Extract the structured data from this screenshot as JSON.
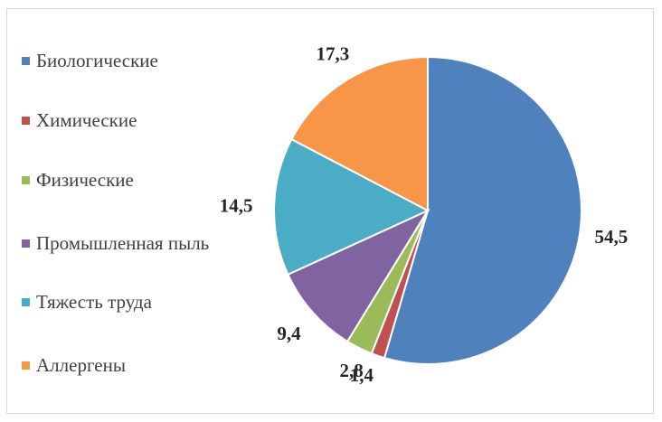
{
  "chart_data": {
    "type": "pie",
    "categories": [
      "Биологические",
      "Химические",
      "Физические",
      "Промышленная пыль",
      "Тяжесть труда",
      "Аллергены"
    ],
    "values": [
      54.5,
      1.4,
      2.8,
      9.4,
      14.5,
      17.3
    ],
    "data_labels": [
      "54,5",
      "1,4",
      "2,8",
      "9,4",
      "14,5",
      "17,3"
    ],
    "colors": [
      "#4f81bd",
      "#c0504d",
      "#9bbb59",
      "#8064a2",
      "#4bacc6",
      "#f79646"
    ],
    "legend_position": "left",
    "title": "",
    "start_angle_deg": 0,
    "direction": "clockwise"
  }
}
